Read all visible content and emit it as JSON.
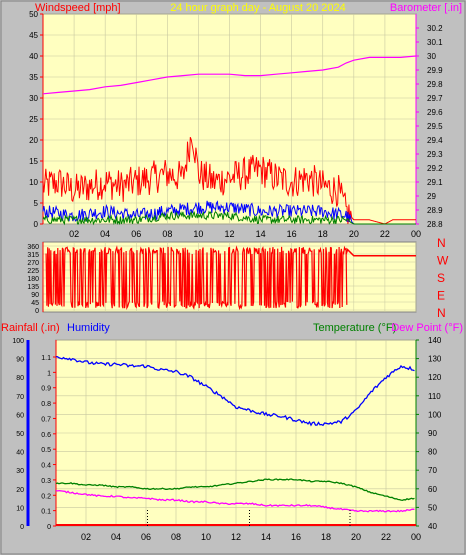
{
  "header": {
    "left_title": "Windspeed [mph]",
    "center_title": "24 hour graph day - August 20 2024",
    "right_title": "Barometer [.in]"
  },
  "colors": {
    "plot_bg": "#ffffc0",
    "page_bg": "#c0c0c0",
    "windspeed": "#ff0000",
    "gust": "#ff0000",
    "wind_blue": "#0000ff",
    "wind_green": "#008000",
    "barometer": "#ff00ff",
    "direction": "#ff0000",
    "humidity": "#0000ff",
    "temperature": "#008000",
    "dewpoint": "#ff00ff",
    "rainfall": "#ff0000",
    "title_yellow": "#ffff00"
  },
  "chart_data": [
    {
      "type": "line",
      "title": "24 hour graph day - August 20 2024",
      "ylabel": "Windspeed [mph]",
      "ylabel_right": "Barometer [.in]",
      "ylim": [
        0,
        50
      ],
      "y2lim": [
        28.8,
        30.3
      ],
      "x_ticks": [
        "02",
        "04",
        "06",
        "08",
        "10",
        "12",
        "14",
        "16",
        "18",
        "20",
        "22",
        "00"
      ],
      "y_ticks": [
        "0",
        "5",
        "10",
        "15",
        "20",
        "25",
        "30",
        "35",
        "40",
        "45",
        "50"
      ],
      "y2_ticks": [
        "28.8",
        "28.9",
        "29",
        "29.1",
        "29.2",
        "29.3",
        "29.4",
        "29.5",
        "29.6",
        "29.7",
        "29.8",
        "29.9",
        "30",
        "30.1",
        "30.2"
      ],
      "series": [
        {
          "name": "Barometer",
          "axis": "right",
          "x": [
            0,
            1,
            2,
            3,
            4,
            5,
            6,
            7,
            8,
            9,
            10,
            11,
            12,
            13,
            14,
            15,
            16,
            17,
            18,
            19,
            19.5,
            20,
            21,
            22,
            23,
            24
          ],
          "values": [
            29.73,
            29.74,
            29.75,
            29.76,
            29.78,
            29.79,
            29.81,
            29.83,
            29.85,
            29.86,
            29.87,
            29.87,
            29.87,
            29.86,
            29.86,
            29.87,
            29.88,
            29.89,
            29.9,
            29.92,
            29.95,
            29.97,
            29.99,
            29.99,
            29.99,
            30.0
          ]
        },
        {
          "name": "Gust",
          "axis": "left",
          "x": [
            0,
            1,
            2,
            3,
            4,
            5,
            6,
            7,
            8,
            9,
            9.6,
            10,
            11,
            12,
            13,
            14,
            15,
            16,
            17,
            18,
            19,
            19.5,
            20,
            21,
            22,
            22.5,
            23,
            24
          ],
          "values": [
            9,
            10,
            8,
            9,
            10,
            9,
            10,
            11,
            12,
            11,
            22,
            12,
            10,
            11,
            12,
            13,
            11,
            10,
            11,
            9,
            8,
            3,
            1,
            1,
            0,
            1,
            1,
            1
          ]
        },
        {
          "name": "Windspeed",
          "axis": "left",
          "x": [
            0,
            2,
            4,
            6,
            8,
            10,
            12,
            14,
            16,
            18,
            19.5,
            20,
            24
          ],
          "values": [
            3,
            2,
            3,
            2,
            3,
            4,
            4,
            3,
            3,
            3,
            2,
            0,
            0
          ]
        },
        {
          "name": "Average wind",
          "axis": "left",
          "x": [
            0,
            2,
            4,
            6,
            8,
            10,
            12,
            14,
            16,
            18,
            19.5,
            20,
            24
          ],
          "values": [
            1,
            1,
            1,
            1,
            2,
            2,
            2,
            1,
            1,
            1,
            1,
            0,
            0
          ]
        }
      ]
    },
    {
      "type": "line",
      "ylabel_right": "N W S E N",
      "ylim": [
        0,
        360
      ],
      "y_ticks": [
        "0",
        "45",
        "90",
        "135",
        "180",
        "225",
        "270",
        "315",
        "360"
      ],
      "right_labels": [
        "N",
        "W",
        "S",
        "E",
        "N"
      ],
      "series": [
        {
          "name": "Wind direction",
          "x": [
            0,
            19.5,
            19.6,
            20,
            24
          ],
          "values": [
            315,
            315,
            340,
            305,
            305
          ]
        }
      ]
    },
    {
      "type": "line",
      "left_label_1": "Rainfall (.in)",
      "left_label_2": "Humidity",
      "right_label_1": "Temperature (°F)",
      "right_label_2": "Dew Point (°F)",
      "humidity_ticks": [
        "0",
        "10",
        "20",
        "30",
        "40",
        "50",
        "60",
        "70",
        "80",
        "90",
        "100"
      ],
      "rain_ticks": [
        "0",
        "0.1",
        "0.2",
        "0.3",
        "0.4",
        "0.5",
        "0.6",
        "0.7",
        "0.8",
        "0.9",
        "1",
        "1.1"
      ],
      "temp_ticks": [
        "40",
        "50",
        "60",
        "70",
        "80",
        "90",
        "100",
        "110",
        "120",
        "130",
        "140"
      ],
      "x_ticks": [
        "02",
        "04",
        "06",
        "08",
        "10",
        "12",
        "14",
        "16",
        "18",
        "20",
        "22",
        "00"
      ],
      "series": [
        {
          "name": "Humidity",
          "x": [
            0,
            1,
            2,
            3,
            4,
            5,
            6,
            7,
            8,
            9,
            10,
            11,
            12,
            13,
            14,
            15,
            16,
            17,
            18,
            19,
            20,
            21,
            22,
            23,
            24
          ],
          "values": [
            91,
            90,
            88,
            87,
            87,
            86,
            86,
            84,
            83,
            80,
            75,
            70,
            64,
            62,
            60,
            59,
            57,
            55,
            55,
            56,
            62,
            72,
            80,
            86,
            84
          ]
        },
        {
          "name": "Temperature",
          "x": [
            0,
            1,
            2,
            3,
            4,
            5,
            6,
            7,
            8,
            9,
            10,
            11,
            12,
            13,
            14,
            15,
            16,
            17,
            18,
            19,
            20,
            21,
            22,
            23,
            24
          ],
          "values": [
            63,
            63,
            62,
            62,
            61,
            61,
            60,
            60,
            60,
            61,
            61,
            62,
            63,
            64,
            65,
            65,
            65,
            64,
            64,
            63,
            61,
            58,
            56,
            54,
            55
          ]
        },
        {
          "name": "Dew Point",
          "x": [
            0,
            1,
            2,
            3,
            4,
            5,
            6,
            7,
            8,
            9,
            10,
            11,
            12,
            13,
            14,
            15,
            16,
            17,
            18,
            19,
            20,
            21,
            22,
            23,
            24
          ],
          "values": [
            59,
            58,
            57,
            56,
            56,
            55,
            55,
            54,
            54,
            53,
            53,
            52,
            52,
            52,
            51,
            51,
            51,
            51,
            50,
            49,
            48,
            48,
            48,
            48,
            49
          ]
        },
        {
          "name": "Rainfall",
          "x": [
            0,
            24
          ],
          "values": [
            0,
            0
          ]
        }
      ]
    }
  ]
}
